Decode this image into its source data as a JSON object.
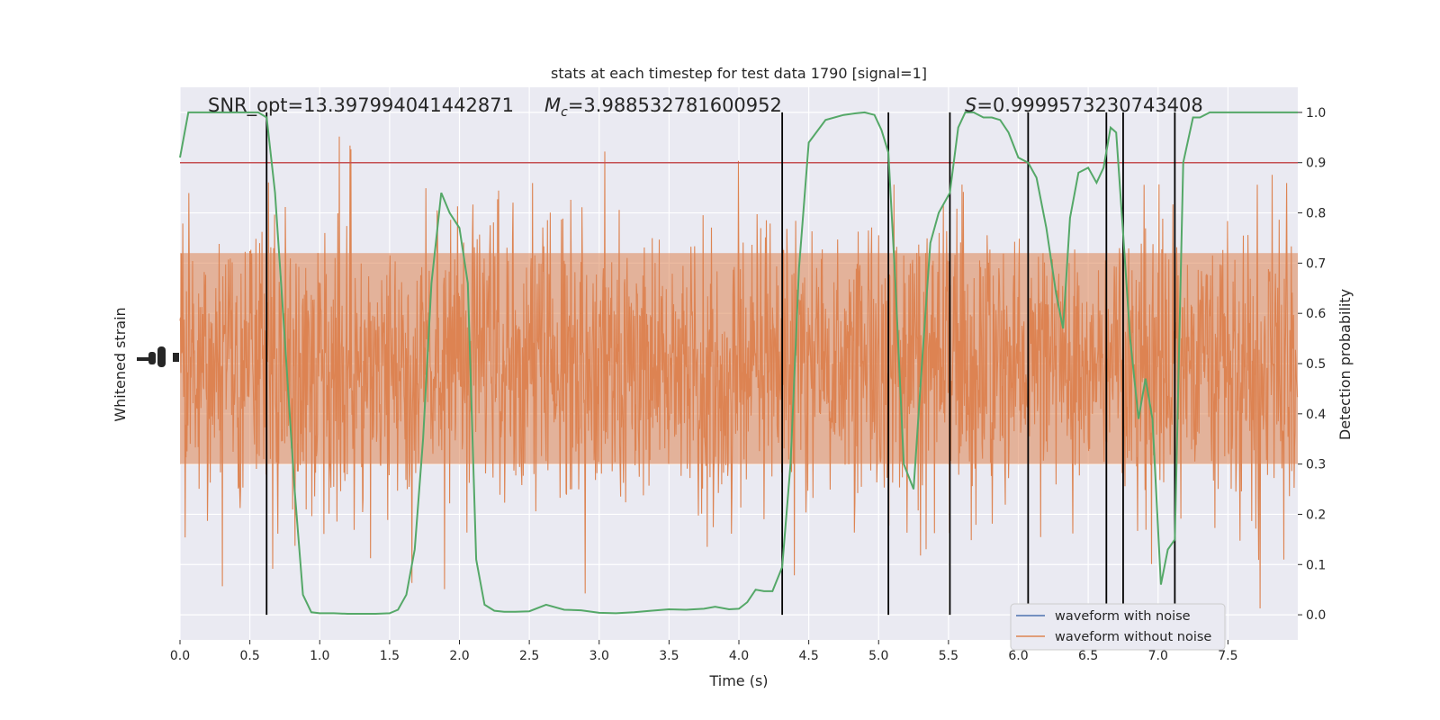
{
  "chart_data": {
    "type": "line",
    "title": "stats at each timestep for test data 1790 [signal=1]",
    "xlabel": "Time (s)",
    "ylabel_left": "Whitened strain",
    "ylabel_right": "Detection probability",
    "xlim": [
      0,
      8
    ],
    "ylim_right": [
      -0.05,
      1.05
    ],
    "x_ticks": [
      0.0,
      0.5,
      1.0,
      1.5,
      2.0,
      2.5,
      3.0,
      3.5,
      4.0,
      4.5,
      5.0,
      5.5,
      6.0,
      6.5,
      7.0,
      7.5
    ],
    "y_ticks_right": [
      0.0,
      0.1,
      0.2,
      0.3,
      0.4,
      0.5,
      0.6,
      0.7,
      0.8,
      0.9,
      1.0
    ],
    "threshold": {
      "value": 0.9,
      "color": "#c44e52"
    },
    "annotations": {
      "snr": "SNR_opt=13.397994041442871",
      "mc_symbol": "M",
      "mc_sub": "c",
      "mc_value": "=3.988532781600952",
      "s_symbol": "S",
      "s_value": "=0.9999573230743408"
    },
    "event_lines_x": [
      0.62,
      4.31,
      5.07,
      5.51,
      6.07,
      6.63,
      6.75,
      7.12
    ],
    "series": [
      {
        "name": "waveform with noise",
        "color": "#4c72b0"
      },
      {
        "name": "waveform without noise",
        "color": "#dd8452"
      },
      {
        "color": "#55a868",
        "x": [
          0.0,
          0.06,
          0.12,
          0.2,
          0.3,
          0.4,
          0.5,
          0.56,
          0.62,
          0.68,
          0.75,
          0.82,
          0.88,
          0.94,
          1.0,
          1.1,
          1.2,
          1.3,
          1.4,
          1.5,
          1.56,
          1.62,
          1.68,
          1.74,
          1.8,
          1.87,
          1.93,
          2.0,
          2.06,
          2.12,
          2.18,
          2.25,
          2.32,
          2.4,
          2.5,
          2.62,
          2.75,
          2.87,
          3.0,
          3.12,
          3.25,
          3.37,
          3.5,
          3.62,
          3.75,
          3.83,
          3.93,
          4.0,
          4.06,
          4.12,
          4.18,
          4.24,
          4.31,
          4.37,
          4.43,
          4.5,
          4.62,
          4.75,
          4.83,
          4.9,
          4.97,
          5.02,
          5.07,
          5.12,
          5.18,
          5.25,
          5.31,
          5.37,
          5.43,
          5.51,
          5.57,
          5.62,
          5.68,
          5.75,
          5.81,
          5.87,
          5.93,
          6.0,
          6.07,
          6.13,
          6.2,
          6.27,
          6.32,
          6.37,
          6.43,
          6.5,
          6.56,
          6.61,
          6.66,
          6.7,
          6.75,
          6.8,
          6.86,
          6.91,
          6.96,
          7.02,
          7.07,
          7.12,
          7.18,
          7.25,
          7.3,
          7.37,
          7.5,
          7.75,
          8.0
        ],
        "y": [
          0.91,
          1.0,
          1.0,
          1.0,
          1.0,
          1.0,
          1.0,
          1.0,
          0.99,
          0.84,
          0.55,
          0.25,
          0.04,
          0.005,
          0.003,
          0.003,
          0.002,
          0.002,
          0.002,
          0.003,
          0.01,
          0.04,
          0.13,
          0.35,
          0.66,
          0.84,
          0.8,
          0.77,
          0.66,
          0.11,
          0.02,
          0.008,
          0.006,
          0.006,
          0.007,
          0.02,
          0.01,
          0.009,
          0.004,
          0.003,
          0.005,
          0.008,
          0.011,
          0.01,
          0.012,
          0.016,
          0.011,
          0.012,
          0.025,
          0.05,
          0.047,
          0.047,
          0.095,
          0.3,
          0.69,
          0.94,
          0.985,
          0.995,
          0.998,
          1.0,
          0.995,
          0.965,
          0.92,
          0.66,
          0.3,
          0.25,
          0.5,
          0.74,
          0.8,
          0.84,
          0.97,
          1.0,
          1.0,
          0.99,
          0.99,
          0.985,
          0.96,
          0.91,
          0.9,
          0.87,
          0.77,
          0.64,
          0.57,
          0.79,
          0.88,
          0.89,
          0.86,
          0.89,
          0.97,
          0.96,
          0.76,
          0.55,
          0.39,
          0.47,
          0.39,
          0.06,
          0.13,
          0.15,
          0.9,
          0.99,
          0.99,
          1.0,
          1.0,
          1.0,
          1.0
        ]
      }
    ]
  }
}
